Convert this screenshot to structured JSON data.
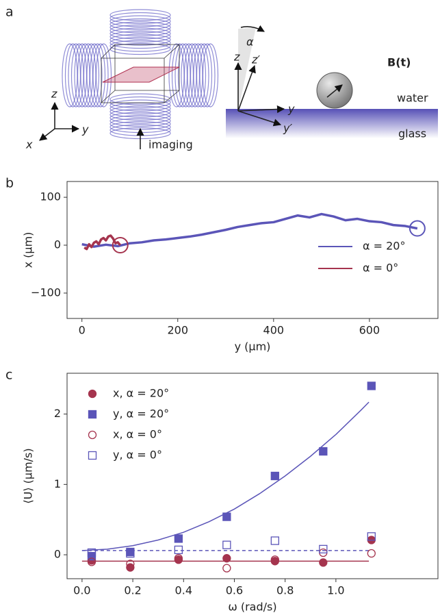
{
  "panel_labels": [
    "a",
    "b",
    "c"
  ],
  "diagram": {
    "left_axes": [
      "z",
      "y",
      "x"
    ],
    "imaging": "imaging",
    "angle": "α",
    "right_axes": [
      "z",
      "z′",
      "y",
      "y′"
    ],
    "field": "B(t)",
    "water": "water",
    "glass": "glass"
  },
  "chart_data": [
    {
      "type": "line",
      "xlabel": "y (μm)",
      "ylabel": "x (μm)",
      "xlim": [
        -31,
        743
      ],
      "ylim": [
        -153,
        133
      ],
      "xticks": [
        0,
        200,
        400,
        600
      ],
      "yticks": [
        {
          "value": -100,
          "label": "−100"
        },
        0,
        100
      ],
      "legend": "lower-right",
      "series": [
        {
          "name": "α = 20°",
          "color": "#5b55b8",
          "x": [
            0,
            25,
            50,
            75,
            100,
            125,
            150,
            175,
            200,
            225,
            250,
            275,
            300,
            325,
            350,
            375,
            400,
            425,
            450,
            475,
            500,
            525,
            550,
            575,
            600,
            625,
            650,
            675,
            700
          ],
          "values": [
            2,
            -3,
            1,
            -2,
            4,
            6,
            10,
            12,
            15,
            18,
            22,
            27,
            32,
            38,
            42,
            46,
            48,
            55,
            62,
            58,
            65,
            60,
            52,
            55,
            50,
            48,
            42,
            40,
            35
          ]
        },
        {
          "name": "α = 0°",
          "color": "#a5344e",
          "x": [
            5,
            10,
            15,
            20,
            25,
            30,
            35,
            40,
            45,
            50,
            55,
            60,
            65,
            70,
            75,
            80
          ],
          "values": [
            -5,
            -8,
            2,
            -4,
            5,
            8,
            2,
            12,
            15,
            10,
            18,
            20,
            14,
            4,
            6,
            0
          ]
        }
      ]
    },
    {
      "type": "scatter",
      "xlabel": "ω (rad/s)",
      "ylabel": "⟨U⟩ (μm/s)",
      "xlim": [
        -0.059,
        1.402
      ],
      "ylim": [
        -0.34,
        2.58
      ],
      "xticks": [
        {
          "value": 0,
          "label": "0.0"
        },
        0.2,
        0.4,
        0.6,
        0.8,
        {
          "value": 1,
          "label": "1.0"
        }
      ],
      "yticks": [
        0,
        1,
        2
      ],
      "legend": "upper-left",
      "series": [
        {
          "name": "x, α = 20°",
          "color": "#a5344e",
          "marker": "circle",
          "filled": true,
          "x": [
            0.038,
            0.19,
            0.38,
            0.57,
            0.76,
            0.95,
            1.14
          ],
          "values": [
            -0.08,
            -0.18,
            -0.07,
            -0.05,
            -0.09,
            -0.11,
            0.21
          ]
        },
        {
          "name": "y, α = 20°",
          "color": "#5b55b8",
          "marker": "square",
          "filled": true,
          "x": [
            0.038,
            0.19,
            0.38,
            0.57,
            0.76,
            0.95,
            1.14
          ],
          "values": [
            -0.02,
            0.04,
            0.23,
            0.54,
            1.12,
            1.47,
            2.4
          ]
        },
        {
          "name": "x, α = 0°",
          "color": "#a5344e",
          "marker": "circle",
          "filled": false,
          "x": [
            0.038,
            0.19,
            0.38,
            0.57,
            0.76,
            0.95,
            1.14
          ],
          "values": [
            -0.1,
            -0.13,
            -0.05,
            -0.19,
            -0.07,
            0.03,
            0.02
          ]
        },
        {
          "name": "y, α = 0°",
          "color": "#5b55b8",
          "marker": "square",
          "filled": false,
          "x": [
            0.038,
            0.19,
            0.38,
            0.57,
            0.76,
            0.95,
            1.14
          ],
          "values": [
            0.03,
            0.02,
            0.07,
            0.14,
            0.2,
            0.08,
            0.26
          ]
        }
      ],
      "fit_lines": [
        {
          "color": "#5b55b8",
          "dashed": false,
          "x": [
            0,
            0.1,
            0.2,
            0.3,
            0.4,
            0.5,
            0.6,
            0.7,
            0.8,
            0.9,
            1.0,
            1.1,
            1.13
          ],
          "values": [
            0.06,
            0.08,
            0.13,
            0.21,
            0.32,
            0.47,
            0.65,
            0.87,
            1.12,
            1.4,
            1.71,
            2.06,
            2.17
          ]
        },
        {
          "color": "#5b55b8",
          "dashed": true,
          "x": [
            0,
            1.13
          ],
          "values": [
            0.06,
            0.06
          ]
        },
        {
          "color": "#a5344e",
          "dashed": false,
          "x": [
            0,
            1.13
          ],
          "values": [
            -0.09,
            -0.09
          ]
        }
      ]
    }
  ]
}
